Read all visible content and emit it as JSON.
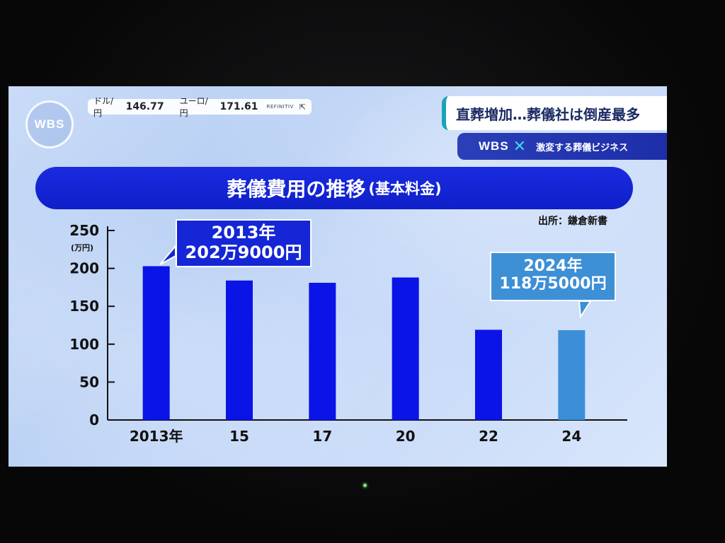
{
  "ticker": {
    "usd_label": "ドル/円",
    "usd_value": "146.77",
    "eur_label": "ユーロ/円",
    "eur_value": "171.61",
    "source": "REFINITIV"
  },
  "logo": {
    "text": "WBS"
  },
  "headline": "直葬増加…葬儀社は倒産最多",
  "subbar": {
    "logo": "WBS",
    "text": "激変する葬儀ビジネス"
  },
  "chart_data": {
    "type": "bar",
    "title": "葬儀費用の推移",
    "subtitle": "(基本料金)",
    "source": "出所：鎌倉新書",
    "ylabel": "(万円)",
    "ylim": [
      0,
      250
    ],
    "yticks": [
      0,
      50,
      100,
      150,
      200,
      250
    ],
    "categories": [
      "2013年",
      "15",
      "17",
      "20",
      "22",
      "24"
    ],
    "values": [
      202.9,
      184,
      181,
      188,
      119,
      118.5
    ],
    "highlight_index": 5,
    "colors": {
      "bar": "#0a14e6",
      "highlight": "#3b8fd8"
    },
    "annotations": [
      {
        "index": 0,
        "line1": "2013年",
        "line2": "202万9000円"
      },
      {
        "index": 5,
        "line1": "2024年",
        "line2": "118万5000円"
      }
    ]
  }
}
